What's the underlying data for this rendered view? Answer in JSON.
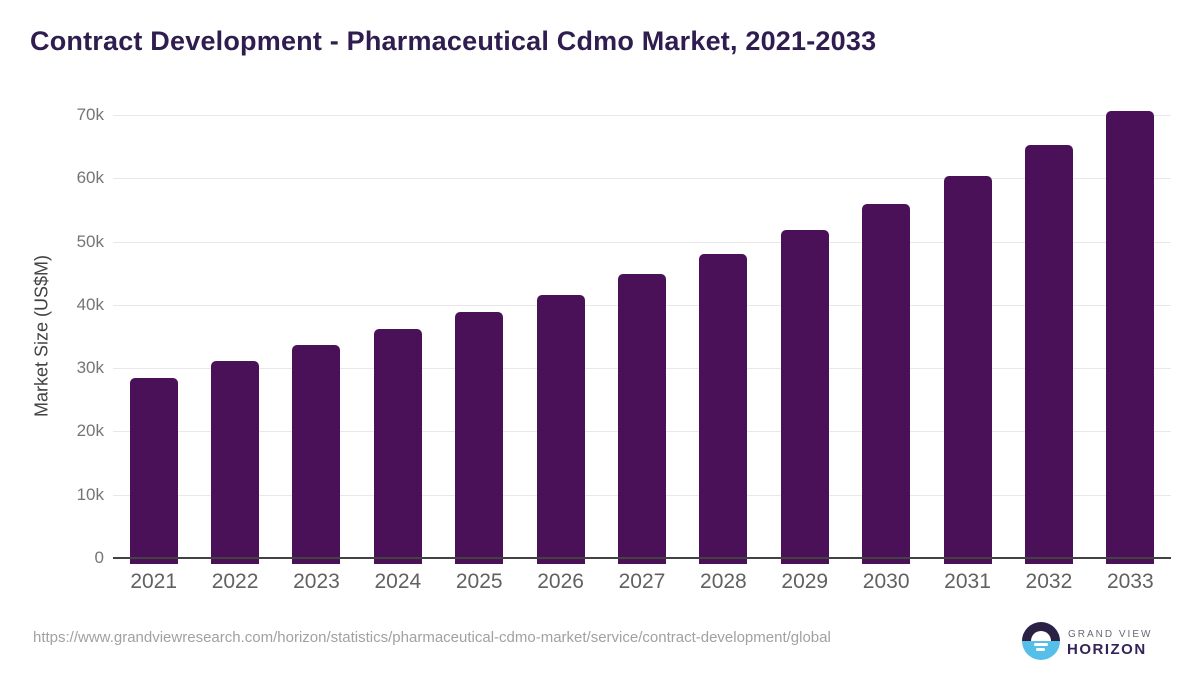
{
  "header": {
    "title": "Contract Development - Pharmaceutical Cdmo Market, 2021-2033"
  },
  "chart_data": {
    "type": "bar",
    "title": "Contract Development - Pharmaceutical Cdmo Market, 2021-2033",
    "categories": [
      "2021",
      "2022",
      "2023",
      "2024",
      "2025",
      "2026",
      "2027",
      "2028",
      "2029",
      "2030",
      "2031",
      "2032",
      "2033"
    ],
    "values": [
      28500,
      31200,
      33700,
      36200,
      38800,
      41500,
      44800,
      48100,
      51800,
      56000,
      60300,
      65200,
      70700
    ],
    "series_name": "Market Size",
    "xlabel": "",
    "ylabel": "Market Size (US$M)",
    "ylim": [
      0,
      70000
    ],
    "yticks": [
      {
        "value": 0,
        "label": "0"
      },
      {
        "value": 10000,
        "label": "10k"
      },
      {
        "value": 20000,
        "label": "20k"
      },
      {
        "value": 30000,
        "label": "30k"
      },
      {
        "value": 40000,
        "label": "40k"
      },
      {
        "value": 50000,
        "label": "50k"
      },
      {
        "value": 60000,
        "label": "60k"
      },
      {
        "value": 70000,
        "label": "70k"
      }
    ],
    "grid": true,
    "legend_position": "none",
    "bar_color": "#4a1158",
    "gridline_color": "#e8e8ea",
    "axis_line_color": "#424242"
  },
  "footer": {
    "source_url": "https://www.grandviewresearch.com/horizon/statistics/pharmaceutical-cdmo-market/service/contract-development/global",
    "logo": {
      "icon": "horizon-sunset-logo-icon",
      "brand_line_top": "GRAND VIEW",
      "brand_line_bottom": "HORIZON",
      "icon_top_color": "#2b2145",
      "icon_bottom_color": "#55bfe9"
    }
  }
}
